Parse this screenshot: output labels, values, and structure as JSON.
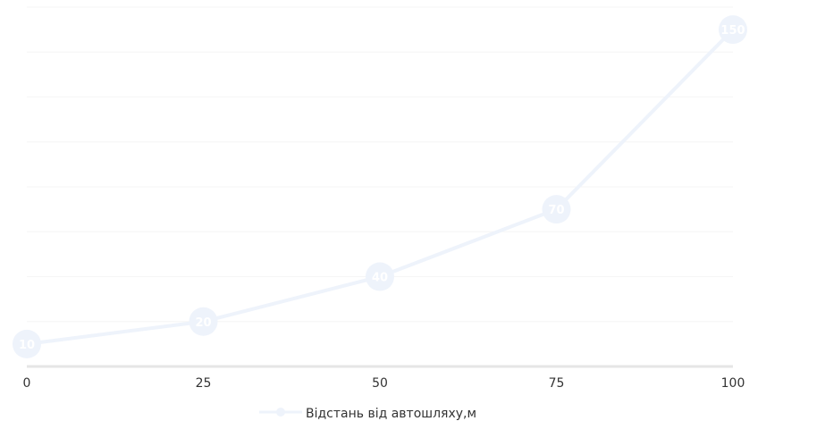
{
  "chart_data": {
    "type": "line",
    "x": [
      0,
      25,
      50,
      75,
      100
    ],
    "series": [
      {
        "name": "Відстань від автошляху,м",
        "values": [
          10,
          20,
          40,
          70,
          150
        ]
      }
    ],
    "x_tick_labels": [
      "0",
      "25",
      "50",
      "75",
      "100"
    ],
    "data_labels": [
      "10",
      "20",
      "40",
      "70",
      "150"
    ],
    "xlim": [
      0,
      100
    ],
    "ylim": [
      0,
      160
    ],
    "grid": true,
    "legend_position": "bottom-center",
    "colors": {
      "series": "#eef3fb",
      "marker": "#eef3fb",
      "grid": "#f6f6f6",
      "axis": "#e6e6e6",
      "label_text": "#ffffff",
      "tick_text": "#333333"
    }
  }
}
